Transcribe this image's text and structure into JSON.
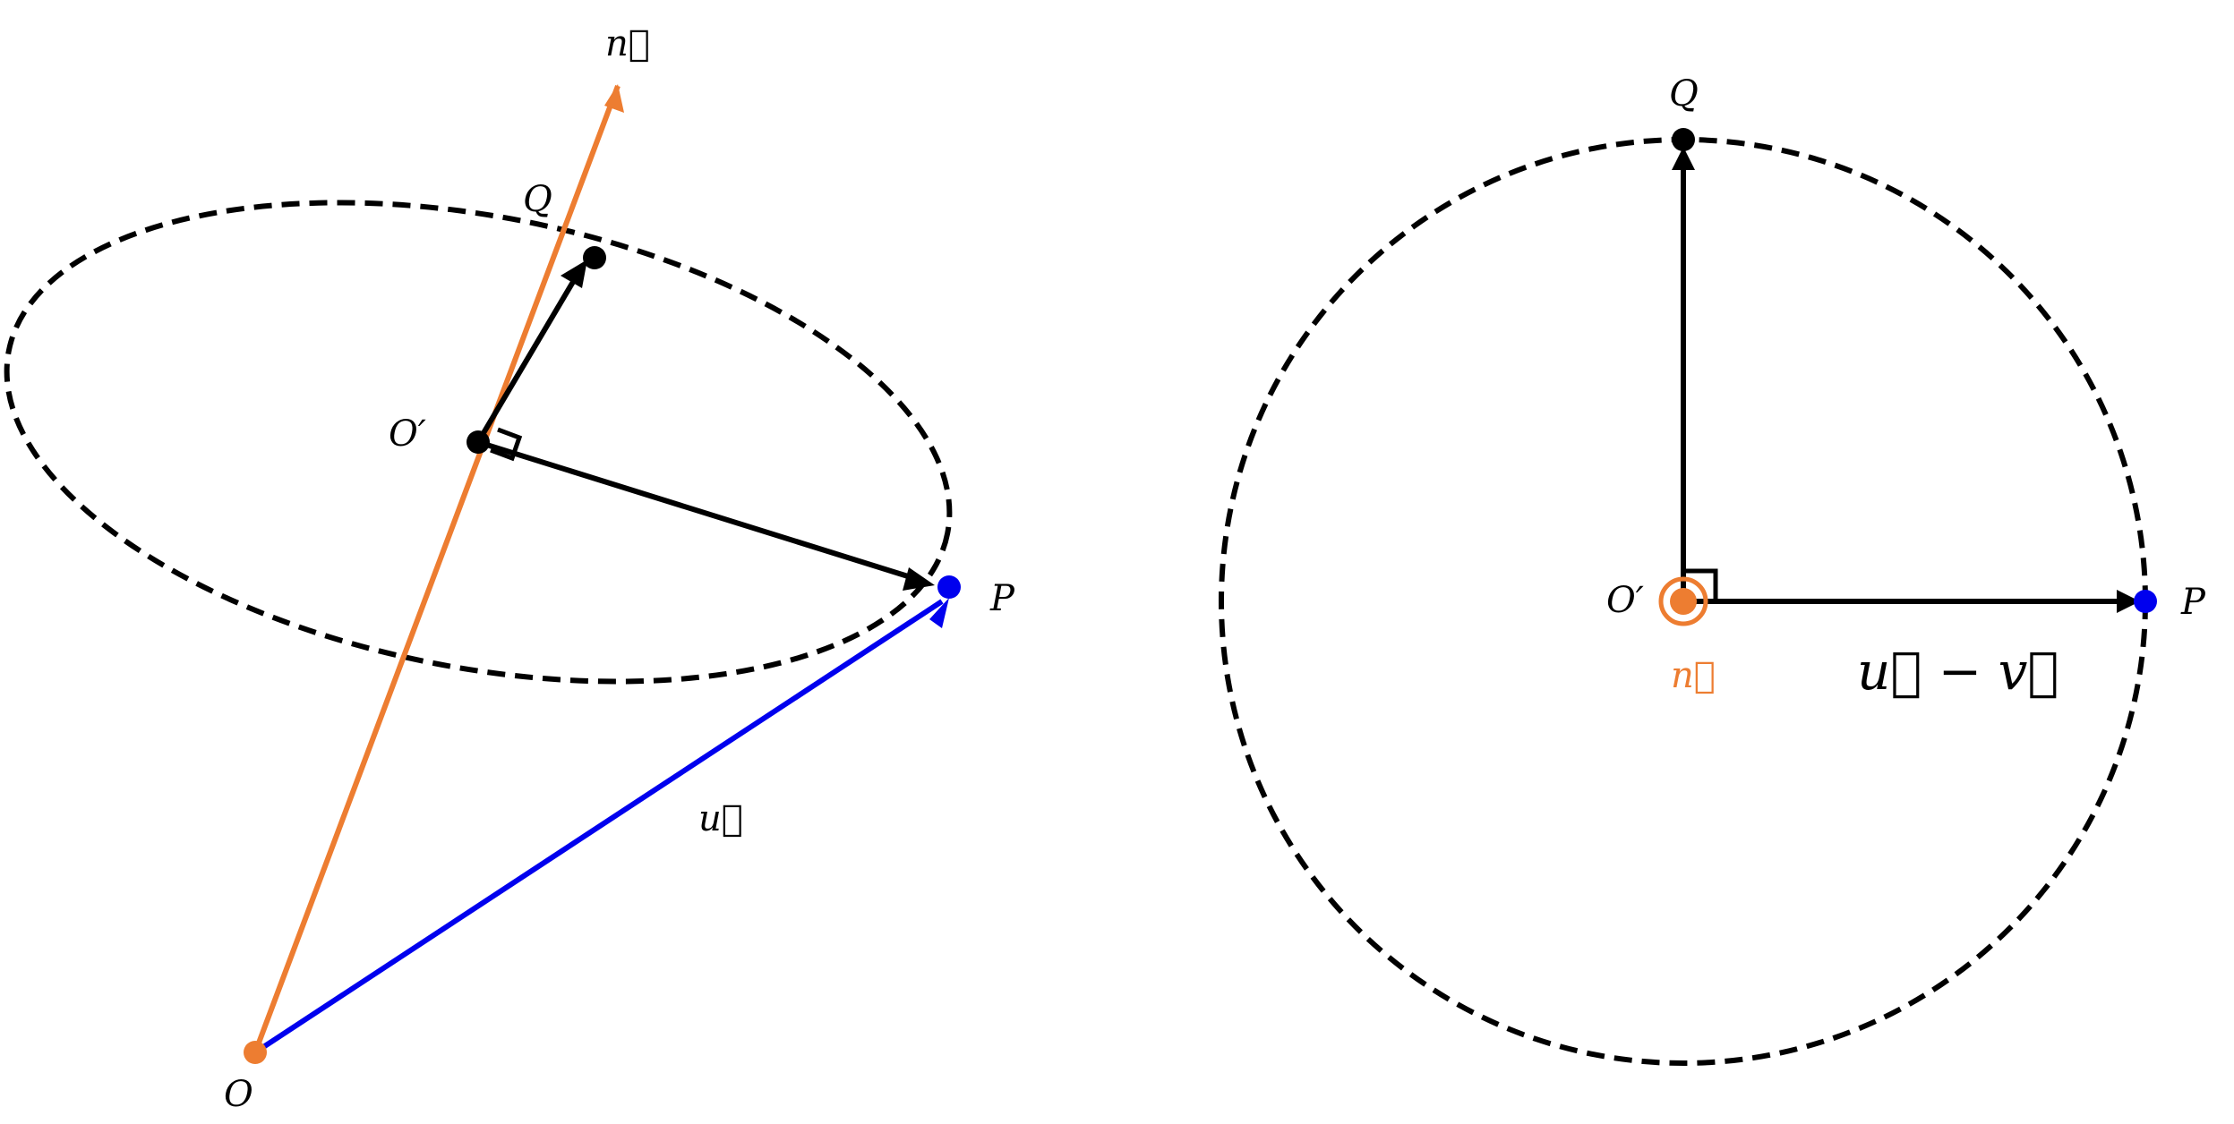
{
  "colors": {
    "orange": "#ED7D31",
    "blue": "#0000EE",
    "black": "#000000",
    "background": "#FFFFFF"
  },
  "left_diagram": {
    "labels": {
      "n": "n⃗",
      "Q": "Q",
      "O_prime": "O′",
      "P": "P",
      "u": "u⃗",
      "O": "O"
    }
  },
  "right_diagram": {
    "labels": {
      "Q": "Q",
      "O_prime": "O′",
      "P": "P",
      "n": "n⃗",
      "u_minus_v": "u⃗  − v⃗"
    }
  }
}
